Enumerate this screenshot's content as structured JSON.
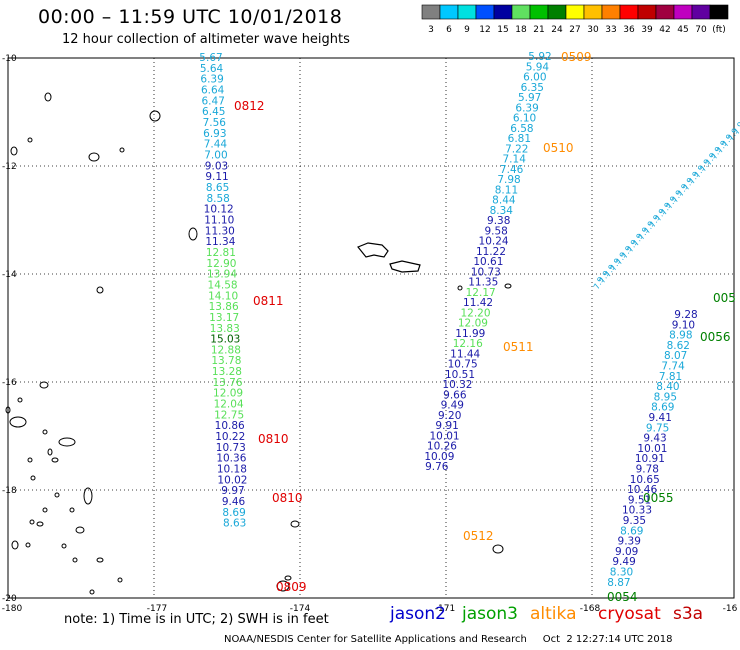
{
  "header": {
    "title": "00:00 – 11:59 UTC 10/01/2018",
    "subtitle": "12 hour collection of altimeter wave heights"
  },
  "colorbar": {
    "colors": [
      "#808080",
      "#00c8ff",
      "#00e0e0",
      "#0050ff",
      "#0000a0",
      "#60e060",
      "#00c000",
      "#008000",
      "#ffff00",
      "#ffc000",
      "#ff8000",
      "#ff0000",
      "#c00000",
      "#a00040",
      "#c000c0",
      "#6000a0",
      "#000000"
    ],
    "labels": [
      "3",
      "6",
      "9",
      "12",
      "15",
      "18",
      "21",
      "24",
      "27",
      "30",
      "33",
      "36",
      "39",
      "42",
      "45",
      "70",
      "(ft)"
    ]
  },
  "axes": {
    "x_ticks": [
      "-180",
      "-177",
      "-174",
      "-171",
      "-168",
      "-16"
    ],
    "y_ticks": [
      "-10",
      "-12",
      "-14",
      "-16",
      "-18",
      "-20"
    ]
  },
  "tracks": [
    {
      "id": "track-1",
      "values": [
        "5.67",
        "5.64",
        "6.39",
        "6.64",
        "6.47",
        "6.45",
        "7.56",
        "6.93",
        "7.44",
        "7.00",
        "9.03",
        "9.11",
        "8.65",
        "8.58",
        "10.12",
        "11.10",
        "11.30",
        "11.34",
        "12.81",
        "12.90",
        "13.94",
        "14.58",
        "14.10",
        "13.86",
        "13.17",
        "13.83",
        "15.03",
        "12.88",
        "13.78",
        "13.28",
        "13.76",
        "12.09",
        "12.04",
        "12.75",
        "10.86",
        "10.22",
        "10.73",
        "10.36",
        "10.18",
        "10.02",
        "9.97",
        "9.46",
        "8.69",
        "8.63"
      ],
      "colors": [
        "#1aa8d8",
        "#1aa8d8",
        "#1aa8d8",
        "#1aa8d8",
        "#1aa8d8",
        "#1aa8d8",
        "#1aa8d8",
        "#1aa8d8",
        "#1aa8d8",
        "#1aa8d8",
        "#1a1aa8",
        "#1a1aa8",
        "#1aa8d8",
        "#1aa8d8",
        "#1a1aa8",
        "#1a1aa8",
        "#1a1aa8",
        "#1a1aa8",
        "#58e058",
        "#58e058",
        "#58e058",
        "#58e058",
        "#58e058",
        "#58e058",
        "#58e058",
        "#58e058",
        "#006000",
        "#58e058",
        "#58e058",
        "#58e058",
        "#58e058",
        "#58e058",
        "#58e058",
        "#58e058",
        "#1a1aa8",
        "#1a1aa8",
        "#1a1aa8",
        "#1a1aa8",
        "#1a1aa8",
        "#1a1aa8",
        "#1a1aa8",
        "#1a1aa8",
        "#1aa8d8",
        "#1aa8d8"
      ]
    },
    {
      "id": "track-2",
      "values": [
        "5.92",
        "5.94",
        "6.00",
        "6.35",
        "5.97",
        "6.39",
        "6.10",
        "6.58",
        "6.81",
        "7.22",
        "7.14",
        "7.46",
        "7.98",
        "8.11",
        "8.44",
        "8.34",
        "9.38",
        "9.58",
        "10.24",
        "11.22",
        "10.61",
        "10.73",
        "11.35",
        "12.17",
        "11.42",
        "12.20",
        "12.09",
        "11.99",
        "12.16",
        "11.44",
        "10.75",
        "10.51",
        "10.32",
        "9.66",
        "9.49",
        "9.20",
        "9.91",
        "10.01",
        "10.26",
        "10.09",
        "9.76"
      ],
      "colors": [
        "#1aa8d8",
        "#1aa8d8",
        "#1aa8d8",
        "#1aa8d8",
        "#1aa8d8",
        "#1aa8d8",
        "#1aa8d8",
        "#1aa8d8",
        "#1aa8d8",
        "#1aa8d8",
        "#1aa8d8",
        "#1aa8d8",
        "#1aa8d8",
        "#1aa8d8",
        "#1aa8d8",
        "#1aa8d8",
        "#1a1aa8",
        "#1a1aa8",
        "#1a1aa8",
        "#1a1aa8",
        "#1a1aa8",
        "#1a1aa8",
        "#1a1aa8",
        "#58e058",
        "#1a1aa8",
        "#58e058",
        "#58e058",
        "#1a1aa8",
        "#58e058",
        "#1a1aa8",
        "#1a1aa8",
        "#1a1aa8",
        "#1a1aa8",
        "#1a1aa8",
        "#1a1aa8",
        "#1a1aa8",
        "#1a1aa8",
        "#1a1aa8",
        "#1a1aa8",
        "#1a1aa8",
        "#1a1aa8"
      ]
    },
    {
      "id": "track-3",
      "values": [
        "9.28",
        "9.10",
        "8.98",
        "8.62",
        "8.07",
        "7.74",
        "7.81",
        "8.40",
        "8.95",
        "8.69",
        "9.41",
        "9.75",
        "9.43",
        "10.01",
        "10.91",
        "9.78",
        "10.65",
        "10.46",
        "9.51",
        "10.33",
        "9.35",
        "8.69",
        "9.39",
        "9.09",
        "9.49",
        "8.30",
        "8.87"
      ],
      "colors": [
        "#1a1aa8",
        "#1a1aa8",
        "#1aa8d8",
        "#1aa8d8",
        "#1aa8d8",
        "#1aa8d8",
        "#1aa8d8",
        "#1aa8d8",
        "#1aa8d8",
        "#1aa8d8",
        "#1a1aa8",
        "#1aa8d8",
        "#1a1aa8",
        "#1a1aa8",
        "#1a1aa8",
        "#1a1aa8",
        "#1a1aa8",
        "#1a1aa8",
        "#1a1aa8",
        "#1a1aa8",
        "#1a1aa8",
        "#1aa8d8",
        "#1a1aa8",
        "#1a1aa8",
        "#1a1aa8",
        "#1aa8d8",
        "#1aa8d8"
      ]
    }
  ],
  "time_labels": [
    {
      "text": "0812",
      "color": "#e00000"
    },
    {
      "text": "0811",
      "color": "#e00000"
    },
    {
      "text": "0810",
      "color": "#e00000"
    },
    {
      "text": "0810",
      "color": "#e00000"
    },
    {
      "text": "0809",
      "color": "#e00000"
    },
    {
      "text": "0509",
      "color": "#ff8c00"
    },
    {
      "text": "0510",
      "color": "#ff8c00"
    },
    {
      "text": "0511",
      "color": "#ff8c00"
    },
    {
      "text": "0512",
      "color": "#ff8c00"
    },
    {
      "text": "005",
      "color": "#008000"
    },
    {
      "text": "0056",
      "color": "#008000"
    },
    {
      "text": "0055",
      "color": "#008000"
    },
    {
      "text": "0054",
      "color": "#008000"
    }
  ],
  "note": "note:  1) Time is in UTC;  2) SWH is in feet",
  "legend": [
    {
      "name": "jason2",
      "color": "#0000cc"
    },
    {
      "name": "jason3",
      "color": "#00a000"
    },
    {
      "name": "altika",
      "color": "#ff8c00"
    },
    {
      "name": "cryosat",
      "color": "#e00000"
    },
    {
      "name": "s3a",
      "color": "#c00000"
    }
  ],
  "footer": "NOAA/NESDIS Center for Satellite Applications and Research     Oct  2 12:27:14 UTC 2018"
}
